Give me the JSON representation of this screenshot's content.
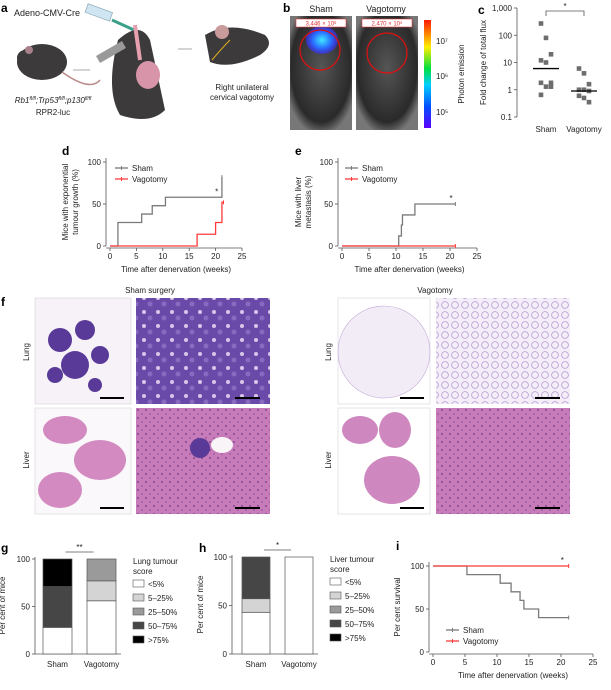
{
  "panel_labels": {
    "a": "a",
    "b": "b",
    "c": "c",
    "d": "d",
    "e": "e",
    "f": "f",
    "g": "g",
    "h": "h",
    "i": "i"
  },
  "panel_a": {
    "injection_label": "Adeno-CMV-Cre",
    "genotype": [
      "Rb1",
      "fl/fl",
      ";Trp53",
      "fl/fl",
      ";p130",
      "fl/fl"
    ],
    "reporter": "RPR2-luc",
    "procedure_line1": "Right unilateral",
    "procedure_line2": "cervical vagotomy"
  },
  "panel_b": {
    "sham_label": "Sham",
    "vagotomy_label": "Vagotomy",
    "sham_flux": "3.446 × 10⁶",
    "vagotomy_flux": "2.470 × 10⁵",
    "colorbar_label": "Photon emission",
    "colorbar_ticks": [
      "10⁷",
      "10⁶",
      "10⁵"
    ]
  },
  "chart_data": [
    {
      "id": "c",
      "type": "scatter",
      "ylabel": "Fold change of total flux",
      "yscale": "log",
      "ylim": [
        0.1,
        1000
      ],
      "yticks": [
        "0.1",
        "1",
        "10",
        "100",
        "1,000"
      ],
      "categories": [
        "Sham",
        "Vagotomy"
      ],
      "series": [
        {
          "category": "Sham",
          "values": [
            270,
            80,
            20,
            12,
            10,
            1.8,
            1.8,
            1.3,
            1.3,
            0.65
          ],
          "median": 6
        },
        {
          "category": "Vagotomy",
          "values": [
            6,
            4,
            1.6,
            1,
            1,
            0.9,
            0.6,
            0.5,
            0.35
          ],
          "median": 0.9
        }
      ],
      "significance": "*",
      "color": "#6d6d6d"
    },
    {
      "id": "d",
      "type": "line",
      "xlabel": "Time after denervation (weeks)",
      "ylabel": "Mice with exponential tumour growth (%)",
      "xlim": [
        0,
        25
      ],
      "ylim": [
        0,
        100
      ],
      "xticks": [
        "0",
        "5",
        "10",
        "15",
        "20",
        "25"
      ],
      "yticks": [
        "0",
        "50",
        "100"
      ],
      "series": [
        {
          "name": "Sham",
          "color": "#7a7a7a",
          "x": [
            0,
            1.5,
            6,
            8,
            10.5,
            21,
            21.2
          ],
          "y": [
            0,
            28,
            38,
            48,
            58,
            58,
            82
          ]
        },
        {
          "name": "Vagotomy",
          "color": "#ff3b3b",
          "x": [
            0,
            16.5,
            20,
            21.2,
            21.5
          ],
          "y": [
            0,
            14,
            28,
            52,
            52
          ]
        }
      ],
      "significance": "*",
      "legend": "top-left"
    },
    {
      "id": "e",
      "type": "line",
      "xlabel": "Time after denervation (weeks)",
      "ylabel": "Mice with liver metastasis (%)",
      "xlim": [
        0,
        25
      ],
      "ylim": [
        0,
        100
      ],
      "xticks": [
        "0",
        "5",
        "10",
        "15",
        "20",
        "25"
      ],
      "yticks": [
        "0",
        "50",
        "100"
      ],
      "series": [
        {
          "name": "Sham",
          "color": "#7a7a7a",
          "x": [
            0,
            10.5,
            11,
            11.2,
            13.5,
            21
          ],
          "y": [
            0,
            12,
            25,
            37,
            50,
            50
          ]
        },
        {
          "name": "Vagotomy",
          "color": "#ff3b3b",
          "x": [
            0,
            21
          ],
          "y": [
            0,
            0
          ]
        }
      ],
      "significance": "*",
      "legend": "top-left"
    },
    {
      "id": "g",
      "type": "bar",
      "stacked": true,
      "ylabel": "Per cent of mice",
      "ylim": [
        0,
        100
      ],
      "yticks": [
        "0",
        "50",
        "100"
      ],
      "categories": [
        "Sham",
        "Vagotomy"
      ],
      "legend_title": "Lung tumour score",
      "series": [
        {
          "name": "<5%",
          "color": "#ffffff",
          "values": [
            28,
            56
          ]
        },
        {
          "name": "5–25%",
          "color": "#d4d4d4",
          "values": [
            0,
            21
          ]
        },
        {
          "name": "25–50%",
          "color": "#9a9a9a",
          "values": [
            0,
            23
          ]
        },
        {
          "name": "50–75%",
          "color": "#464646",
          "values": [
            43,
            0
          ]
        },
        {
          "name": ">75%",
          "color": "#000000",
          "values": [
            29,
            0
          ]
        }
      ],
      "significance": "**"
    },
    {
      "id": "h",
      "type": "bar",
      "stacked": true,
      "ylabel": "Per cent of mice",
      "ylim": [
        0,
        100
      ],
      "yticks": [
        "0",
        "50",
        "100"
      ],
      "categories": [
        "Sham",
        "Vagotomy"
      ],
      "legend_title": "Liver tumour score",
      "series": [
        {
          "name": "<5%",
          "color": "#ffffff",
          "values": [
            43,
            100
          ]
        },
        {
          "name": "5–25%",
          "color": "#d4d4d4",
          "values": [
            14,
            0
          ]
        },
        {
          "name": "25–50%",
          "color": "#9a9a9a",
          "values": [
            0,
            0
          ]
        },
        {
          "name": "50–75%",
          "color": "#464646",
          "values": [
            43,
            0
          ]
        },
        {
          "name": ">75%",
          "color": "#000000",
          "values": [
            0,
            0
          ]
        }
      ],
      "significance": "*"
    },
    {
      "id": "i",
      "type": "line",
      "xlabel": "Time after denervation (weeks)",
      "ylabel": "Per cent survival",
      "xlim": [
        0,
        25
      ],
      "ylim": [
        0,
        100
      ],
      "xticks": [
        "0",
        "5",
        "10",
        "15",
        "20",
        "25"
      ],
      "yticks": [
        "0",
        "50",
        "100"
      ],
      "series": [
        {
          "name": "Sham",
          "color": "#7a7a7a",
          "x": [
            0,
            5.3,
            10.5,
            12.2,
            13.6,
            14.2,
            16.5,
            21.2
          ],
          "y": [
            100,
            90,
            80,
            70,
            60,
            50,
            40,
            40
          ]
        },
        {
          "name": "Vagotomy",
          "color": "#ff3b3b",
          "x": [
            0,
            21.2
          ],
          "y": [
            100,
            100
          ]
        }
      ],
      "significance": "*",
      "legend": "bottom-left"
    }
  ],
  "panel_f": {
    "sham_title": "Sham surgery",
    "vagotomy_title": "Vagotomy",
    "row_lung": "Lung",
    "row_liver": "Liver"
  }
}
